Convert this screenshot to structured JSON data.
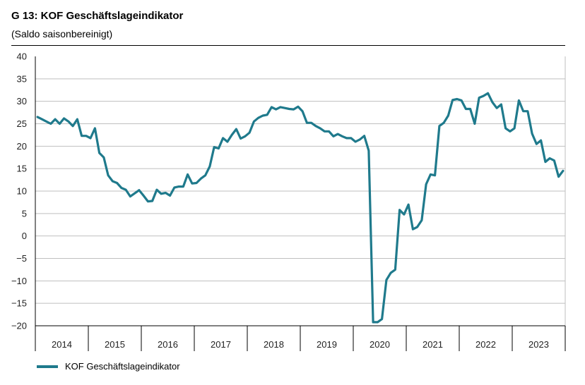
{
  "header": {
    "title": "G 13: KOF Geschäftslageindikator",
    "subtitle": "(Saldo saisonbereinigt)"
  },
  "legend": {
    "label": "KOF Geschäftslageindikator"
  },
  "colors": {
    "series": "#1f7a8c",
    "grid": "#bfbfbf",
    "axis": "#000000"
  },
  "chart_data": {
    "type": "line",
    "title": "G 13: KOF Geschäftslageindikator",
    "subtitle": "(Saldo saisonbereinigt)",
    "xlabel": "",
    "ylabel": "",
    "ylim": [
      -20,
      40
    ],
    "yticks": [
      40,
      35,
      30,
      25,
      20,
      15,
      10,
      5,
      0,
      -5,
      -10,
      -15,
      -20
    ],
    "xlim": [
      "2014-01",
      "2023-12"
    ],
    "x_tick_labels": [
      "2014",
      "2015",
      "2016",
      "2017",
      "2018",
      "2019",
      "2020",
      "2021",
      "2022",
      "2023"
    ],
    "grid": true,
    "legend_position": "bottom-left",
    "series": [
      {
        "name": "KOF Geschäftslageindikator",
        "x": [
          "2014-01",
          "2014-02",
          "2014-03",
          "2014-04",
          "2014-05",
          "2014-06",
          "2014-07",
          "2014-08",
          "2014-09",
          "2014-10",
          "2014-11",
          "2014-12",
          "2015-01",
          "2015-02",
          "2015-03",
          "2015-04",
          "2015-05",
          "2015-06",
          "2015-07",
          "2015-08",
          "2015-09",
          "2015-10",
          "2015-11",
          "2015-12",
          "2016-01",
          "2016-02",
          "2016-03",
          "2016-04",
          "2016-05",
          "2016-06",
          "2016-07",
          "2016-08",
          "2016-09",
          "2016-10",
          "2016-11",
          "2016-12",
          "2017-01",
          "2017-02",
          "2017-03",
          "2017-04",
          "2017-05",
          "2017-06",
          "2017-07",
          "2017-08",
          "2017-09",
          "2017-10",
          "2017-11",
          "2017-12",
          "2018-01",
          "2018-02",
          "2018-03",
          "2018-04",
          "2018-05",
          "2018-06",
          "2018-07",
          "2018-08",
          "2018-09",
          "2018-10",
          "2018-11",
          "2018-12",
          "2019-01",
          "2019-02",
          "2019-03",
          "2019-04",
          "2019-05",
          "2019-06",
          "2019-07",
          "2019-08",
          "2019-09",
          "2019-10",
          "2019-11",
          "2019-12",
          "2020-01",
          "2020-02",
          "2020-03",
          "2020-04",
          "2020-05",
          "2020-06",
          "2020-07",
          "2020-08",
          "2020-09",
          "2020-10",
          "2020-11",
          "2020-12",
          "2021-01",
          "2021-02",
          "2021-03",
          "2021-04",
          "2021-05",
          "2021-06",
          "2021-07",
          "2021-08",
          "2021-09",
          "2021-10",
          "2021-11",
          "2021-12",
          "2022-01",
          "2022-02",
          "2022-03",
          "2022-04",
          "2022-05",
          "2022-06",
          "2022-07",
          "2022-08",
          "2022-09",
          "2022-10",
          "2022-11",
          "2022-12",
          "2023-01",
          "2023-02",
          "2023-03",
          "2023-04",
          "2023-05",
          "2023-06",
          "2023-07",
          "2023-08",
          "2023-09",
          "2023-10",
          "2023-11",
          "2023-12"
        ],
        "values": [
          26.5,
          26.0,
          25.5,
          25.0,
          26.0,
          25.0,
          26.2,
          25.5,
          24.5,
          26.0,
          22.3,
          22.3,
          21.8,
          24.0,
          18.5,
          17.5,
          13.5,
          12.2,
          11.8,
          10.7,
          10.3,
          8.8,
          9.5,
          10.2,
          9.0,
          7.7,
          7.8,
          10.3,
          9.4,
          9.6,
          9.0,
          10.8,
          11.0,
          11.0,
          13.7,
          11.7,
          11.8,
          12.8,
          13.5,
          15.5,
          19.8,
          19.5,
          21.8,
          21.0,
          22.5,
          23.8,
          21.7,
          22.2,
          23.0,
          25.5,
          26.3,
          26.8,
          27.0,
          28.7,
          28.2,
          28.7,
          28.5,
          28.3,
          28.2,
          28.8,
          27.8,
          25.2,
          25.2,
          24.5,
          24.0,
          23.3,
          23.3,
          22.2,
          22.7,
          22.2,
          21.8,
          21.8,
          21.0,
          21.5,
          22.3,
          19.0,
          -19.2,
          -19.2,
          -18.5,
          -9.8,
          -8.2,
          -7.5,
          5.8,
          4.8,
          7.0,
          1.5,
          2.0,
          3.5,
          11.5,
          13.7,
          13.5,
          24.5,
          25.2,
          26.8,
          30.3,
          30.5,
          30.2,
          28.3,
          28.3,
          25.0,
          30.8,
          31.2,
          31.8,
          29.8,
          28.5,
          29.3,
          24.0,
          23.3,
          24.0,
          30.2,
          27.8,
          27.8,
          22.8,
          20.5,
          21.3,
          16.5,
          17.3,
          16.8,
          13.2,
          14.5
        ]
      }
    ]
  }
}
